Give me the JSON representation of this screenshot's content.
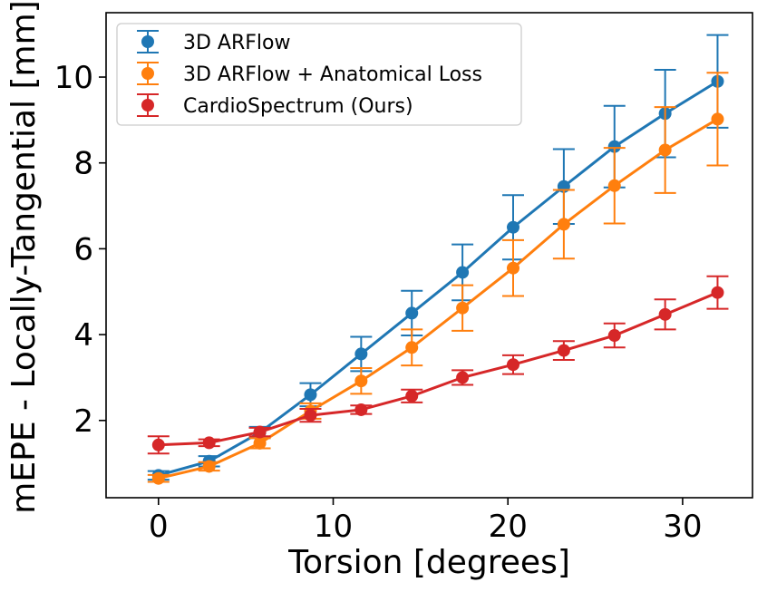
{
  "chart_data": {
    "type": "line",
    "title": "",
    "xlabel": "Torsion [degrees]",
    "ylabel": "mEPE - Locally-Tangential [mm]",
    "xlim": [
      -3,
      34
    ],
    "ylim": [
      0.2,
      11.5
    ],
    "xticks": [
      "0",
      "10",
      "20",
      "30"
    ],
    "yticks": [
      "2",
      "4",
      "6",
      "8",
      "10"
    ],
    "grid": false,
    "legend_position": "top-left",
    "x": [
      0,
      2.9,
      5.8,
      8.7,
      11.6,
      14.5,
      17.4,
      20.3,
      23.2,
      26.1,
      29.0,
      32.0
    ],
    "series": [
      {
        "name": "3D ARFlow",
        "color": "#1f77b4",
        "values": [
          0.72,
          1.05,
          1.72,
          2.6,
          3.55,
          4.5,
          5.45,
          6.5,
          7.45,
          8.38,
          9.15,
          9.9
        ],
        "errors": [
          0.1,
          0.12,
          0.13,
          0.27,
          0.4,
          0.52,
          0.65,
          0.75,
          0.87,
          0.95,
          1.02,
          1.08
        ]
      },
      {
        "name": "3D ARFlow + Anatomical Loss",
        "color": "#ff7f0e",
        "values": [
          0.65,
          0.93,
          1.47,
          2.22,
          2.92,
          3.7,
          4.62,
          5.55,
          6.57,
          7.47,
          8.3,
          9.02
        ],
        "errors": [
          0.08,
          0.1,
          0.12,
          0.18,
          0.3,
          0.42,
          0.53,
          0.65,
          0.8,
          0.88,
          1.0,
          1.08
        ]
      },
      {
        "name": "CardioSpectrum (Ours)",
        "color": "#d62728",
        "values": [
          1.43,
          1.48,
          1.73,
          2.12,
          2.25,
          2.57,
          3.0,
          3.3,
          3.63,
          3.98,
          4.47,
          4.98
        ],
        "errors": [
          0.2,
          0.08,
          0.1,
          0.15,
          0.1,
          0.15,
          0.17,
          0.22,
          0.22,
          0.28,
          0.35,
          0.38
        ]
      }
    ]
  }
}
